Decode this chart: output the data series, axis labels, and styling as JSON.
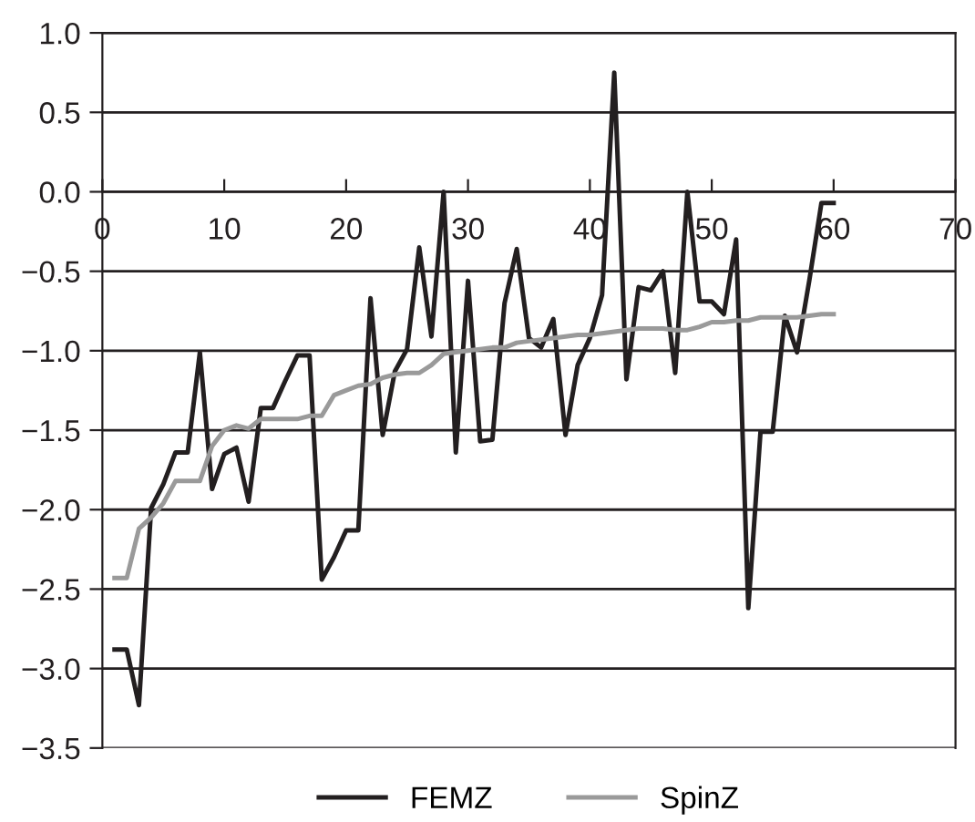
{
  "chart_data": {
    "type": "line",
    "x": [
      1,
      2,
      3,
      4,
      5,
      6,
      7,
      8,
      9,
      10,
      11,
      12,
      13,
      14,
      15,
      16,
      17,
      18,
      19,
      20,
      21,
      22,
      23,
      24,
      25,
      26,
      27,
      28,
      29,
      30,
      31,
      32,
      33,
      34,
      35,
      36,
      37,
      38,
      39,
      40,
      41,
      42,
      43,
      44,
      45,
      46,
      47,
      48,
      49,
      50,
      51,
      52,
      53,
      54,
      55,
      56,
      57,
      58,
      59,
      60
    ],
    "series": [
      {
        "name": "FEMZ",
        "color": "#231f20",
        "values": [
          -2.88,
          -2.88,
          -3.23,
          -1.99,
          -1.84,
          -1.64,
          -1.64,
          -1.01,
          -1.87,
          -1.65,
          -1.61,
          -1.95,
          -1.36,
          -1.36,
          -1.19,
          -1.03,
          -1.03,
          -2.44,
          -2.3,
          -2.13,
          -2.13,
          -0.67,
          -1.53,
          -1.13,
          -0.99,
          -0.35,
          -0.91,
          0.0,
          -1.64,
          -0.56,
          -1.57,
          -1.56,
          -0.7,
          -0.36,
          -0.92,
          -0.98,
          -0.8,
          -1.53,
          -1.09,
          -0.92,
          -0.65,
          0.75,
          -1.18,
          -0.6,
          -0.62,
          -0.5,
          -1.14,
          0.0,
          -0.69,
          -0.69,
          -0.77,
          -0.3,
          -2.62,
          -1.51,
          -1.51,
          -0.78,
          -1.01,
          -0.56,
          -0.07,
          -0.07
        ]
      },
      {
        "name": "SpinZ",
        "color": "#9a9a9a",
        "values": [
          -2.43,
          -2.43,
          -2.12,
          -2.05,
          -1.96,
          -1.82,
          -1.82,
          -1.82,
          -1.6,
          -1.5,
          -1.47,
          -1.49,
          -1.43,
          -1.43,
          -1.43,
          -1.43,
          -1.41,
          -1.41,
          -1.28,
          -1.25,
          -1.22,
          -1.21,
          -1.17,
          -1.15,
          -1.14,
          -1.14,
          -1.09,
          -1.02,
          -1.01,
          -1.0,
          -0.99,
          -0.98,
          -0.98,
          -0.95,
          -0.94,
          -0.93,
          -0.92,
          -0.91,
          -0.9,
          -0.9,
          -0.89,
          -0.88,
          -0.87,
          -0.86,
          -0.86,
          -0.86,
          -0.87,
          -0.87,
          -0.85,
          -0.82,
          -0.82,
          -0.81,
          -0.81,
          -0.79,
          -0.79,
          -0.79,
          -0.79,
          -0.78,
          -0.77,
          -0.77
        ]
      }
    ],
    "xlim": [
      0,
      70
    ],
    "xticks": [
      0,
      10,
      20,
      30,
      40,
      50,
      60,
      70
    ],
    "ylim": [
      -3.5,
      1.0
    ],
    "yticks": [
      {
        "value": -3.5,
        "label": "−3.5"
      },
      {
        "value": -3.0,
        "label": "−3.0"
      },
      {
        "value": -2.5,
        "label": "−2.5"
      },
      {
        "value": -2.0,
        "label": "−2.0"
      },
      {
        "value": -1.5,
        "label": "−1.5"
      },
      {
        "value": -1.0,
        "label": "−1.0"
      },
      {
        "value": -0.5,
        "label": "−0.5"
      },
      {
        "value": 0.0,
        "label": "0.0"
      },
      {
        "value": 0.5,
        "label": "0.5"
      },
      {
        "value": 1.0,
        "label": "1.0"
      }
    ],
    "grid": "y",
    "legend": "bottom",
    "marker": "none",
    "line_style": "solid"
  }
}
